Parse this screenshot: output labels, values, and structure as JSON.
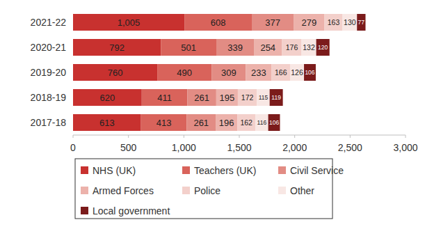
{
  "chart_data": {
    "type": "bar",
    "orientation": "horizontal",
    "stacked": true,
    "data_labels": true,
    "grid": false,
    "legend": "bottom",
    "categories": [
      "2021-22",
      "2020-21",
      "2019-20",
      "2018-19",
      "2017-18"
    ],
    "xlim": [
      0,
      3000
    ],
    "xticks": [
      0,
      500,
      {
        "value": 1000,
        "label": "1,000"
      },
      {
        "value": 1500,
        "label": "1,500"
      },
      {
        "value": 2000,
        "label": "2,000"
      },
      {
        "value": 2500,
        "label": "2,500"
      },
      {
        "value": 3000,
        "label": "3,000"
      }
    ],
    "series": [
      {
        "name": "NHS (UK)",
        "color": "#c8312f",
        "values": [
          1005,
          792,
          760,
          620,
          613
        ],
        "value_labels": [
          "1,005",
          "792",
          "760",
          "620",
          "613"
        ]
      },
      {
        "name": "Teachers (UK)",
        "color": "#d9635b",
        "values": [
          608,
          501,
          490,
          411,
          413
        ]
      },
      {
        "name": "Civil Service",
        "color": "#e28c84",
        "values": [
          377,
          339,
          309,
          261,
          261
        ]
      },
      {
        "name": "Armed Forces",
        "color": "#ecb2ab",
        "values": [
          279,
          254,
          233,
          195,
          196
        ]
      },
      {
        "name": "Police",
        "color": "#f3d0cb",
        "values": [
          163,
          176,
          166,
          172,
          162
        ]
      },
      {
        "name": "Other",
        "color": "#f8e7e4",
        "values": [
          130,
          132,
          126,
          115,
          116
        ]
      },
      {
        "name": "Local government",
        "color": "#7b1b1b",
        "values": [
          77,
          120,
          106,
          119,
          106
        ]
      }
    ]
  }
}
